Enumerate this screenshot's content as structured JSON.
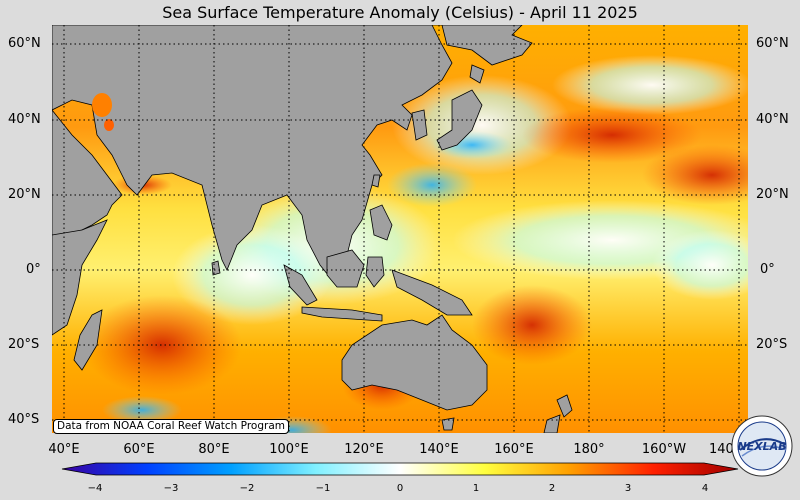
{
  "title": "Sea Surface Temperature Anomaly (Celsius) - April 11 2025",
  "credit": "Data from NOAA Coral Reef Watch Program",
  "lat_labels": [
    "60°N",
    "40°N",
    "20°N",
    "0°",
    "20°S",
    "40°S"
  ],
  "lon_labels": [
    "40°E",
    "60°E",
    "80°E",
    "100°E",
    "120°E",
    "140°E",
    "160°E",
    "180°",
    "160°W",
    "140°W"
  ],
  "colorbar": {
    "ticks": [
      "−4",
      "−3",
      "−2",
      "−1",
      "0",
      "1",
      "2",
      "3",
      "4"
    ],
    "colors": [
      "#3a00a0",
      "#0040ff",
      "#00a0ff",
      "#80f0ff",
      "#ffffff",
      "#ffff40",
      "#ffa000",
      "#ff2000",
      "#a00000"
    ]
  },
  "logo": {
    "text": "NEXLAB"
  },
  "map": {
    "land_color": "#a0a0a0",
    "ocean_warm_color": "#ffc000",
    "ocean_hot_color": "#e03000",
    "ocean_cool_color": "#a0ffff",
    "grid": "dotted"
  }
}
